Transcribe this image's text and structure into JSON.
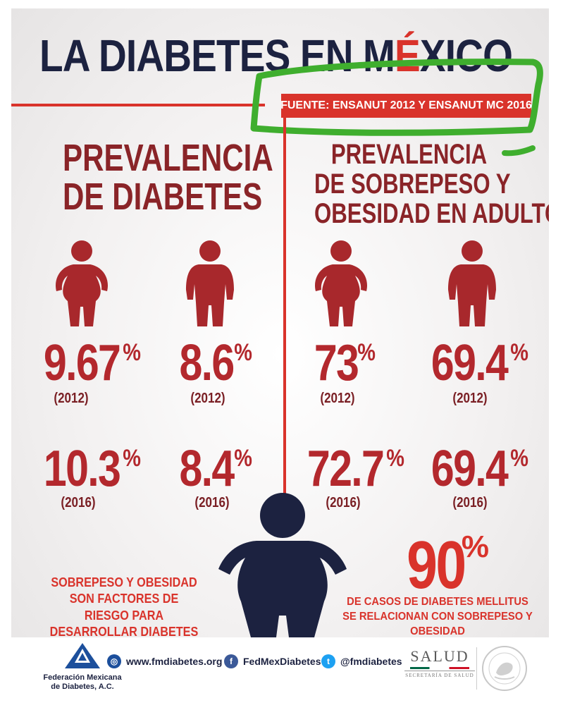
{
  "title": {
    "part1": "LA DIABETES EN M",
    "accent_letter": "É",
    "part2": "XICO"
  },
  "source": "FUENTE: ENSANUT 2012 Y ENSANUT MC 2016",
  "colors": {
    "navy": "#1c2240",
    "red": "#d9332b",
    "dark_red": "#8a2428",
    "figure_red": "#a8282c",
    "annotation_green": "#3fae2e"
  },
  "left_section": {
    "title_lines": [
      "PREVALENCIA",
      "DE DIABETES"
    ],
    "stats": [
      {
        "value": "9.67",
        "unit": "%",
        "year": "(2012)"
      },
      {
        "value": "8.6",
        "unit": "%",
        "year": "(2012)"
      },
      {
        "value": "10.3",
        "unit": "%",
        "year": "(2016)"
      },
      {
        "value": "8.4",
        "unit": "%",
        "year": "(2016)"
      }
    ],
    "note": "SOBREPESO Y OBESIDAD SON FACTORES DE RIESGO PARA DESARROLLAR DIABETES"
  },
  "right_section": {
    "title_lines": [
      "PREVALENCIA",
      "DE SOBREPESO Y",
      "OBESIDAD EN ADULTOS"
    ],
    "stats": [
      {
        "value": "73",
        "unit": "%",
        "year": "(2012)"
      },
      {
        "value": "69.4",
        "unit": "%",
        "year": "(2012)"
      },
      {
        "value": "72.7",
        "unit": "%",
        "year": "(2016)"
      },
      {
        "value": "69.4",
        "unit": "%",
        "year": "(2016)"
      }
    ],
    "big_stat": {
      "value": "90",
      "unit": "%"
    },
    "note": "DE CASOS DE DIABETES MELLITUS SE RELACIONAN CON SOBREPESO Y OBESIDAD"
  },
  "footer": {
    "org_lines": [
      "Federación Mexicana",
      "de Diabetes, A.C."
    ],
    "website": "www.fmdiabetes.org",
    "facebook": "FedMexDiabetes",
    "twitter": "@fmdiabetes",
    "salud": "SALUD",
    "salud_sub": "SECRETARÍA DE SALUD",
    "icons": [
      "globe-icon",
      "facebook-icon",
      "twitter-icon"
    ]
  }
}
